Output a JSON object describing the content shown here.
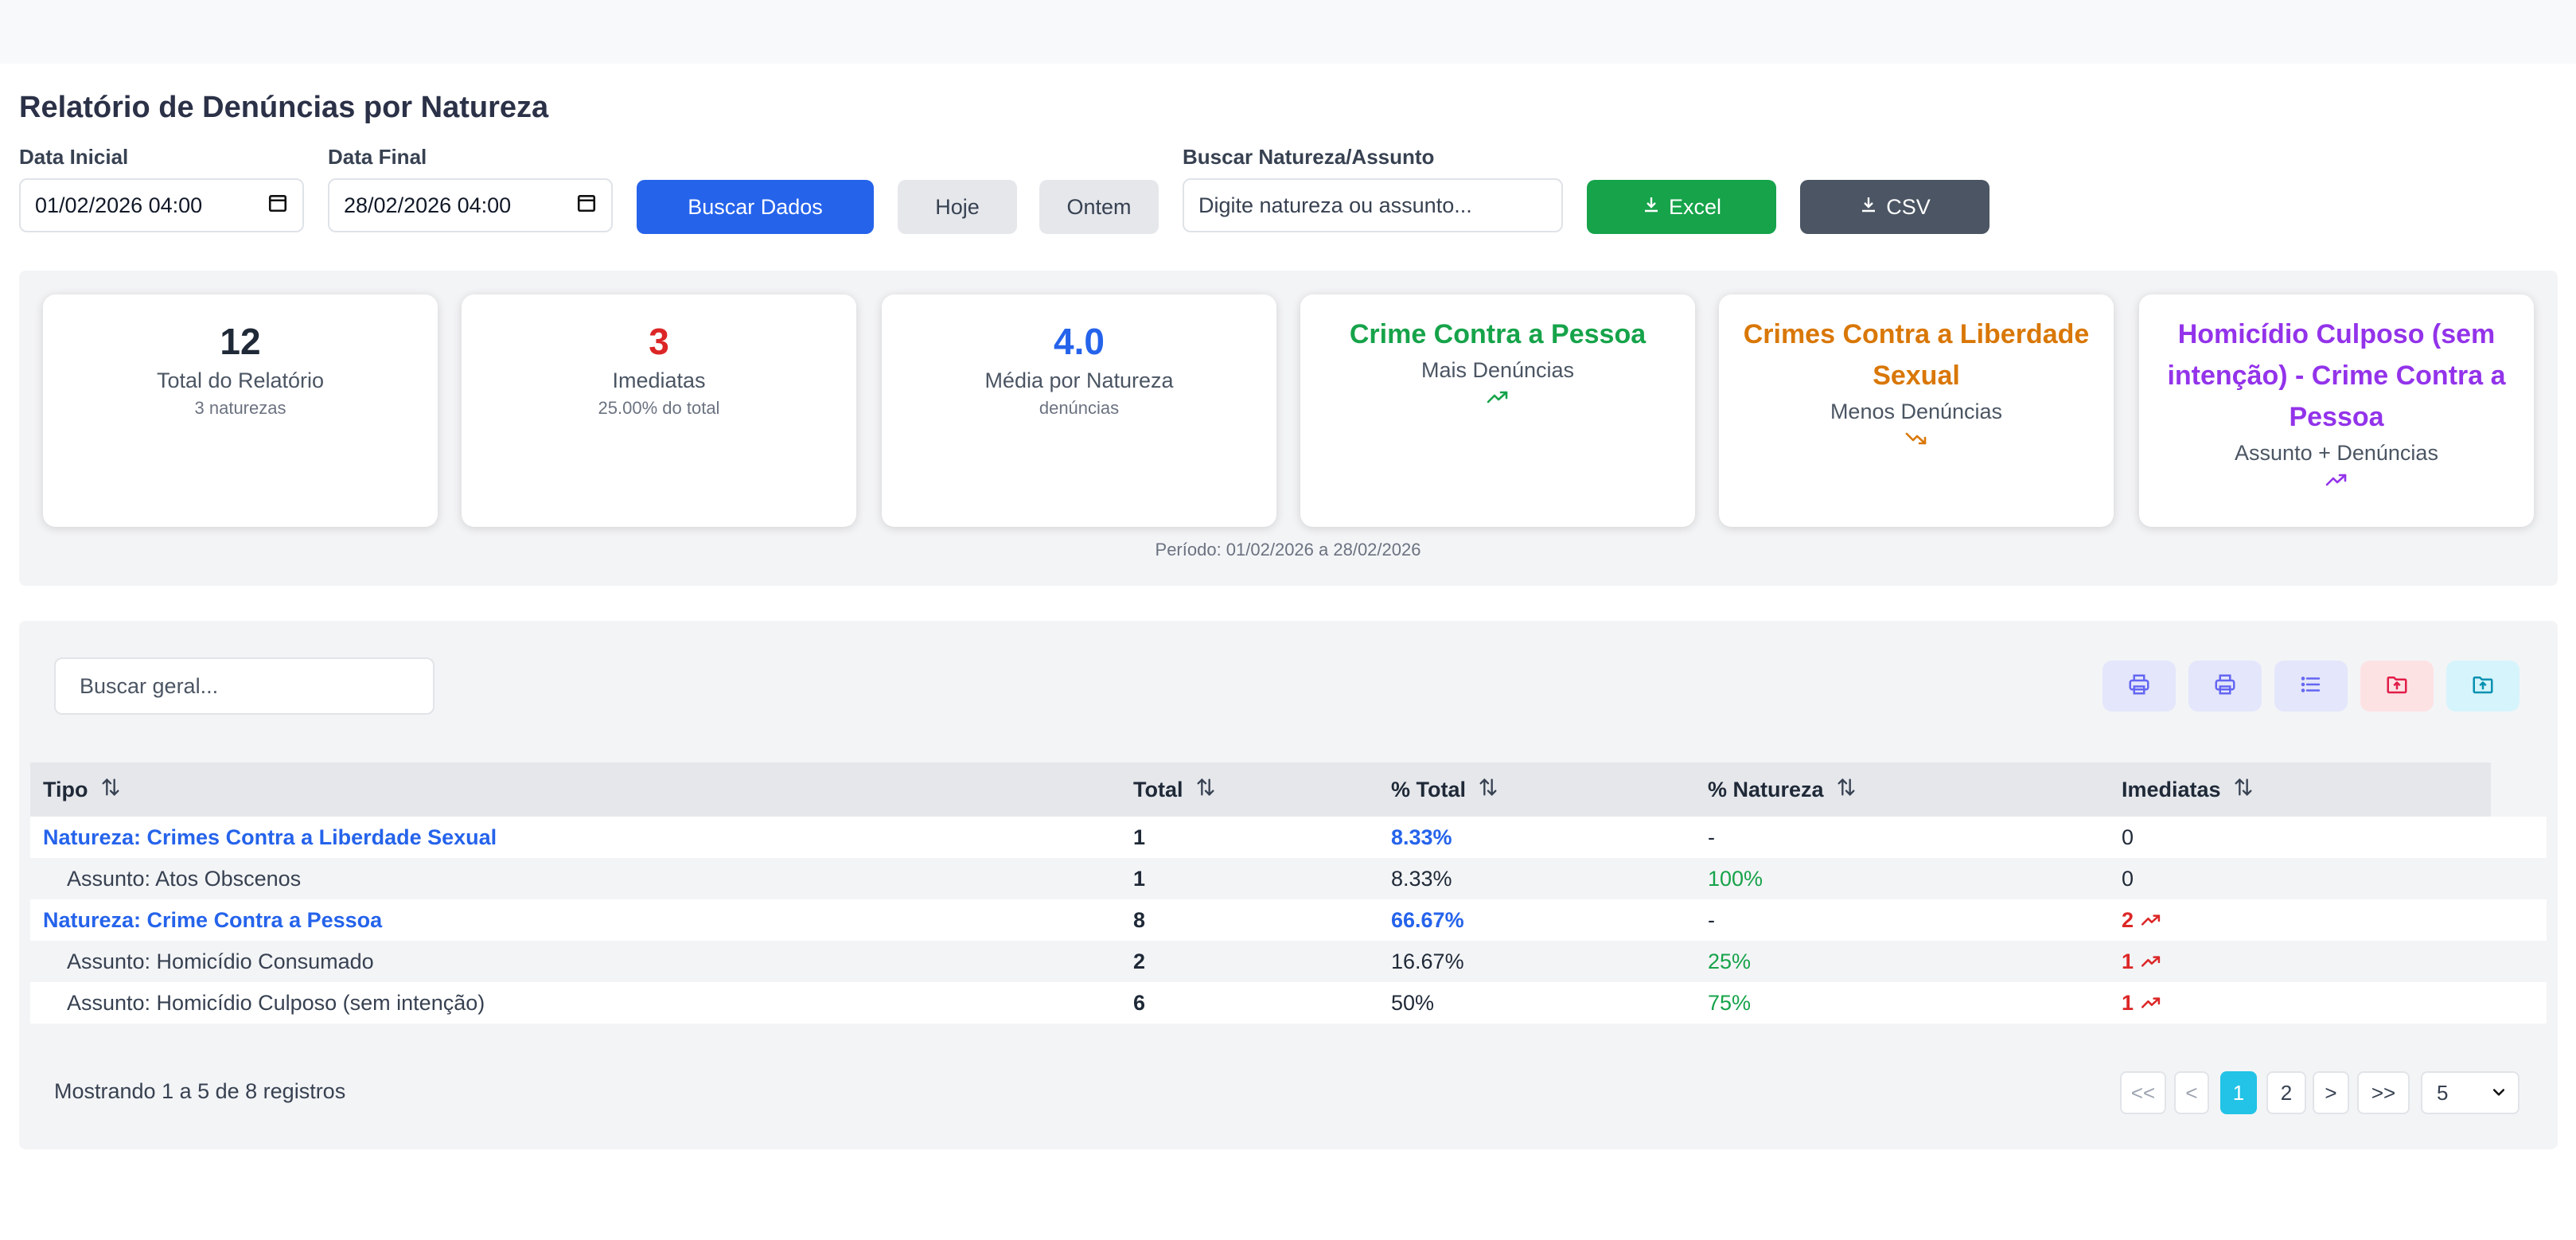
{
  "page": {
    "title": "Relatório de Denúncias por Natureza"
  },
  "filters": {
    "start_label": "Data Inicial",
    "start_value": "01/02/2026 04:00",
    "end_label": "Data Final",
    "end_value": "28/02/2026 04:00",
    "search_button": "Buscar Dados",
    "today_button": "Hoje",
    "yesterday_button": "Ontem",
    "search_label": "Buscar Natureza/Assunto",
    "search_placeholder": "Digite natureza ou assunto...",
    "excel_button": "Excel",
    "csv_button": "CSV"
  },
  "stats": {
    "total": {
      "value": "12",
      "caption": "Total do Relatório",
      "sub": "3 naturezas"
    },
    "immediate": {
      "value": "3",
      "caption": "Imediatas",
      "sub": "25.00% do total"
    },
    "average": {
      "value": "4.0",
      "caption": "Média por Natureza",
      "sub": "denúncias"
    },
    "most": {
      "name": "Crime Contra a Pessoa",
      "caption": "Mais Denúncias"
    },
    "least": {
      "name": "Crimes Contra a Liberdade Sexual",
      "caption": "Menos Denúncias"
    },
    "top_subject": {
      "name": "Homicídio Culposo (sem intenção) - Crime Contra a Pessoa",
      "caption": "Assunto + Denúncias"
    },
    "period": "Período: 01/02/2026 a 28/02/2026"
  },
  "colors": {
    "primary": "#2563eb",
    "success": "#16a34a",
    "danger": "#dc2626",
    "warning": "#d97706",
    "purple": "#9333ea",
    "pagination_active": "#22c3e6"
  },
  "table": {
    "search_placeholder": "Buscar geral...",
    "toolbar_icons": [
      "printer-icon",
      "printer-icon",
      "list-icon",
      "folder-upload-icon",
      "folder-upload-icon"
    ],
    "columns": [
      "Tipo",
      "Total",
      "% Total",
      "% Natureza",
      "Imediatas"
    ],
    "rows": [
      {
        "tipo": "Natureza: Crimes Contra a Liberdade Sexual",
        "total": "1",
        "pct_total": "8.33%",
        "pct_natureza": "-",
        "imediatas": "0"
      },
      {
        "tipo": "Assunto: Atos Obscenos",
        "total": "1",
        "pct_total": "8.33%",
        "pct_natureza": "100%",
        "imediatas": "0"
      },
      {
        "tipo": "Natureza: Crime Contra a Pessoa",
        "total": "8",
        "pct_total": "66.67%",
        "pct_natureza": "-",
        "imediatas": "2"
      },
      {
        "tipo": "Assunto: Homicídio Consumado",
        "total": "2",
        "pct_total": "16.67%",
        "pct_natureza": "25%",
        "imediatas": "1"
      },
      {
        "tipo": "Assunto: Homicídio Culposo (sem intenção)",
        "total": "6",
        "pct_total": "50%",
        "pct_natureza": "75%",
        "imediatas": "1"
      }
    ]
  },
  "pagination": {
    "info": "Mostrando 1 a 5 de 8 registros",
    "first": "<<",
    "prev": "<",
    "pages": [
      "1",
      "2"
    ],
    "next": ">",
    "last": ">>",
    "page_size": "5"
  }
}
